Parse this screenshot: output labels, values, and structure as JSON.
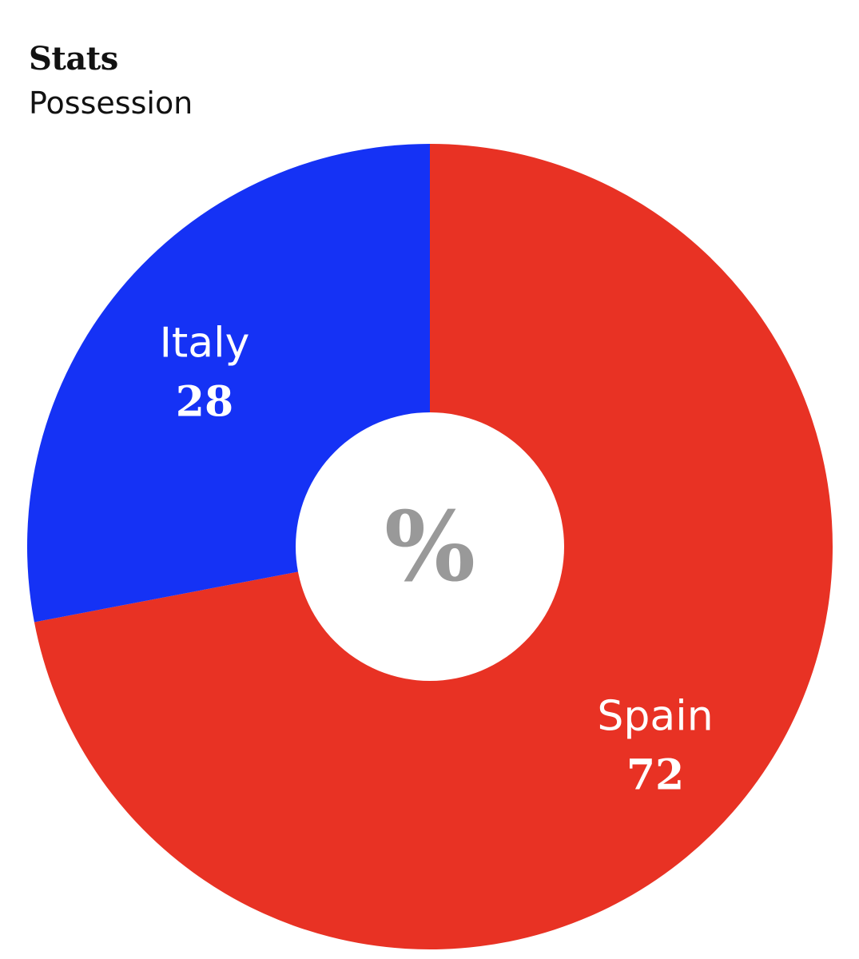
{
  "header": {
    "title": "Stats",
    "subtitle": "Possession"
  },
  "chart_data": {
    "type": "pie",
    "title": "Stats",
    "subtitle": "Possession",
    "donut": true,
    "center_label": "%",
    "slices": [
      {
        "name": "Spain",
        "value": 72,
        "color": "#e83224"
      },
      {
        "name": "Italy",
        "value": 28,
        "color": "#1532f5"
      }
    ],
    "start": "top",
    "direction": "clockwise"
  }
}
